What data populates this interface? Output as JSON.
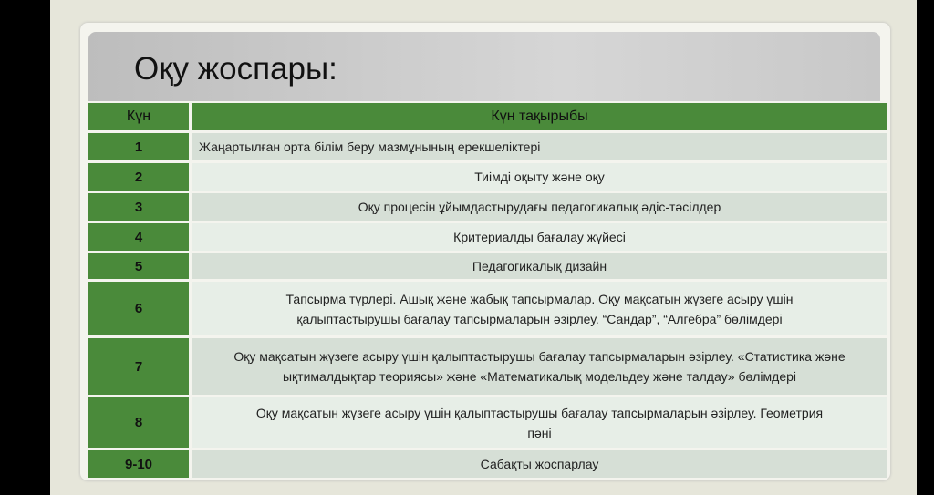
{
  "title": "Оқу жоспары:",
  "table": {
    "headers": [
      "Күн",
      "Күн тақырыбы"
    ],
    "rows": [
      {
        "day": "1",
        "topic": "Жаңартылған орта білім беру мазмұнының ерекшеліктері"
      },
      {
        "day": "2",
        "topic": "Тиімді оқыту және оқу"
      },
      {
        "day": "3",
        "topic": "Оқу процесін ұйымдастырудағы педагогикалық әдіс-тәсілдер"
      },
      {
        "day": "4",
        "topic": "Критериалды бағалау жүйесі"
      },
      {
        "day": "5",
        "topic": "Педагогикалық  дизайн"
      },
      {
        "day": "6",
        "topic": "Тапсырма түрлері. Ашық және жабық тапсырмалар. Оқу мақсатын жүзеге асыру үшін қалыптастырушы бағалау тапсырмаларын әзірлеу. “Сандар”, “Алгебра” бөлімдері"
      },
      {
        "day": "7",
        "topic": "Оқу мақсатын жүзеге асыру үшін қалыптастырушы бағалау тапсырмаларын әзірлеу. «Статистика және ықтималдықтар теориясы» және «Математикалық модельдеу және талдау» бөлімдері"
      },
      {
        "day": "8",
        "topic": "Оқу мақсатын жүзеге асыру үшін қалыптастырушы бағалау тапсырмаларын әзірлеу. Геометрия пәні"
      },
      {
        "day": "9-10",
        "topic": "Сабақты жоспарлау"
      }
    ]
  },
  "colors": {
    "header_green": "#4a8a3a",
    "row_dark": "#d6dfd6",
    "row_light": "#e7eee7"
  }
}
